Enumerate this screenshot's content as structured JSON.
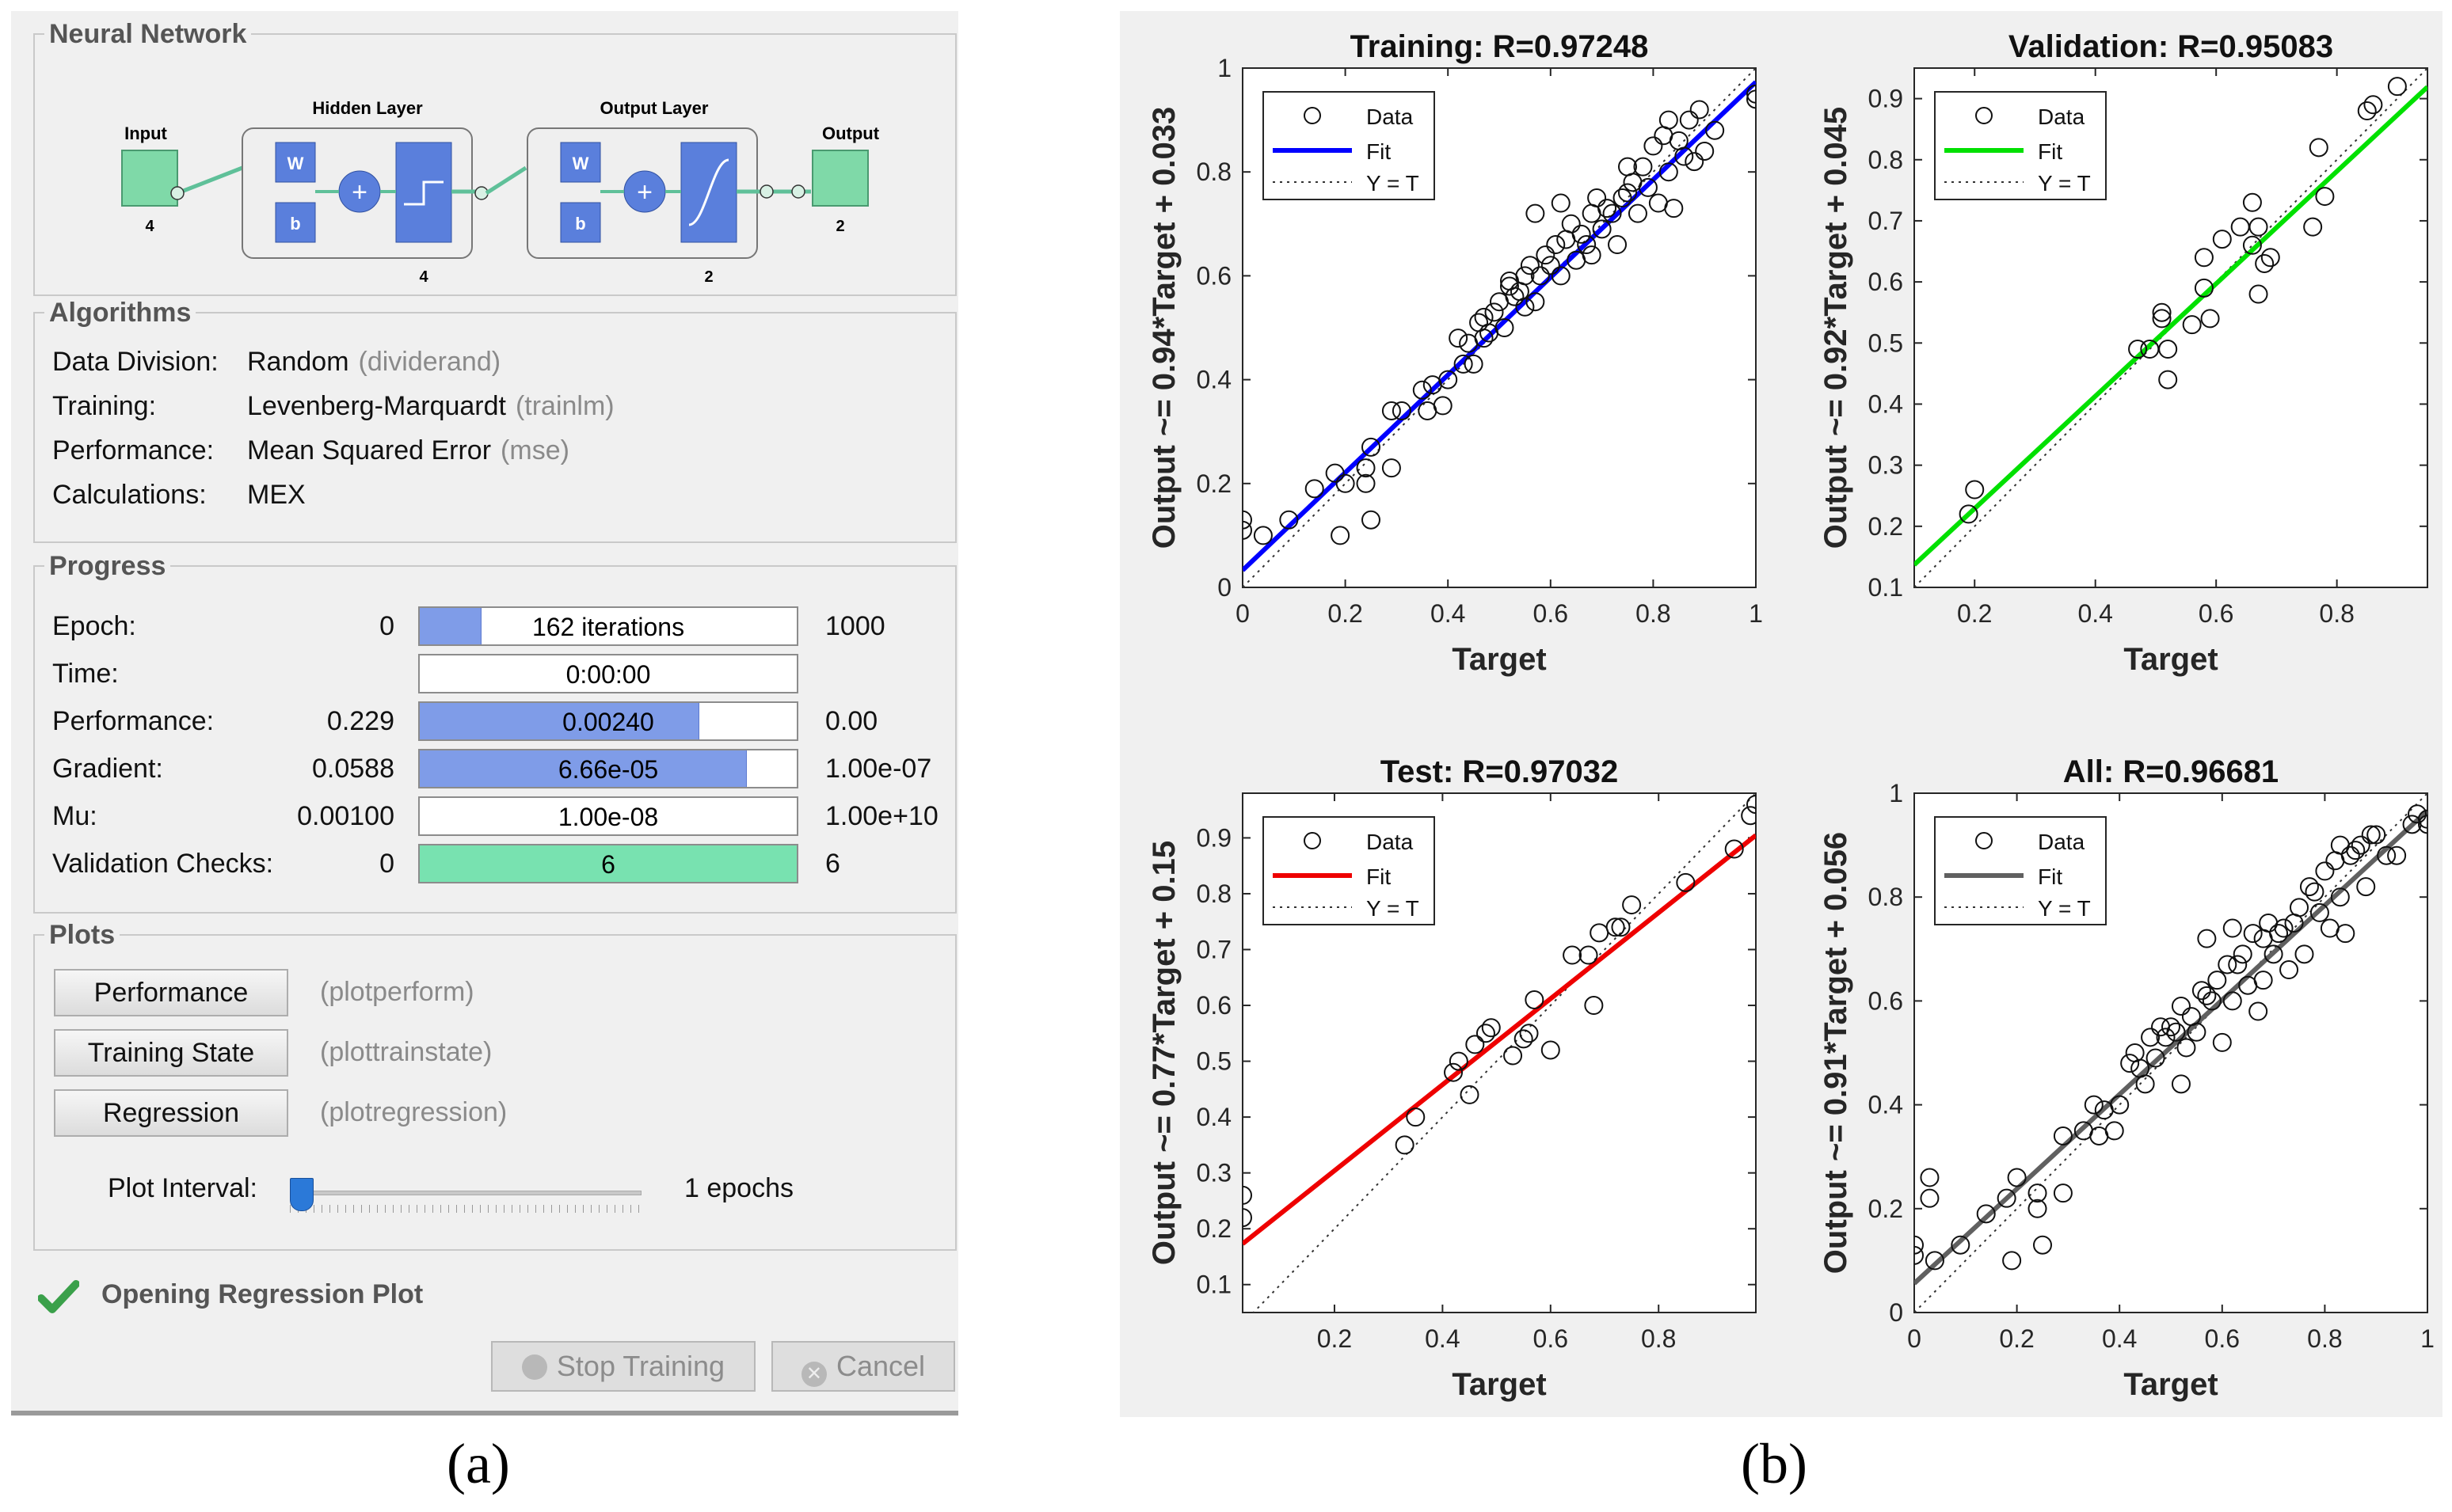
{
  "panel_a": {
    "neural_network": {
      "title": "Neural Network",
      "input_label": "Input",
      "input_size": "4",
      "hidden_label": "Hidden Layer",
      "hidden_size": "4",
      "output_layer_label": "Output Layer",
      "output_layer_size": "2",
      "output_label": "Output",
      "output_size": "2",
      "w_label": "W",
      "b_label": "b"
    },
    "algorithms": {
      "title": "Algorithms",
      "rows": [
        {
          "key": "Data Division:",
          "value": "Random",
          "fn": "(dividerand)"
        },
        {
          "key": "Training:",
          "value": "Levenberg-Marquardt",
          "fn": "(trainlm)"
        },
        {
          "key": "Performance:",
          "value": "Mean Squared Error",
          "fn": "(mse)"
        },
        {
          "key": "Calculations:",
          "value": "MEX",
          "fn": ""
        }
      ]
    },
    "progress": {
      "title": "Progress",
      "rows": [
        {
          "label": "Epoch:",
          "min": "0",
          "value": "162 iterations",
          "max": "1000",
          "fill": 0.162
        },
        {
          "label": "Time:",
          "min": "",
          "value": "0:00:00",
          "max": "",
          "fill": 0
        },
        {
          "label": "Performance:",
          "min": "0.229",
          "value": "0.00240",
          "max": "0.00",
          "fill": 0.74
        },
        {
          "label": "Gradient:",
          "min": "0.0588",
          "value": "6.66e-05",
          "max": "1.00e-07",
          "fill": 0.865
        },
        {
          "label": "Mu:",
          "min": "0.00100",
          "value": "1.00e-08",
          "max": "1.00e+10",
          "fill": 0
        },
        {
          "label": "Validation Checks:",
          "min": "0",
          "value": "6",
          "max": "6",
          "fill": 1.0
        }
      ]
    },
    "plots": {
      "title": "Plots",
      "buttons": [
        {
          "label": "Performance",
          "fn": "(plotperform)"
        },
        {
          "label": "Training State",
          "fn": "(plottrainstate)"
        },
        {
          "label": "Regression",
          "fn": "(plotregression)"
        }
      ],
      "interval_label": "Plot Interval:",
      "interval_value": "1 epochs",
      "interval_fraction": 0.0
    },
    "status_text": "Opening Regression Plot",
    "stop_button": "Stop Training",
    "cancel_button": "Cancel",
    "colors": {
      "progress_fill": "#7f9ce8",
      "validation_fill": "#78e2b0",
      "status_check": "#3aa04a"
    }
  },
  "captions": {
    "a": "(a)",
    "b": "(b)"
  },
  "chart_data": [
    {
      "type": "scatter",
      "title": "Training: R=0.97248",
      "xlabel": "Target",
      "ylabel": "Output ~= 0.94*Target + 0.033",
      "xlim": [
        0,
        1
      ],
      "ylim": [
        0,
        1
      ],
      "xticks": [
        0,
        0.2,
        0.4,
        0.6,
        0.8,
        1
      ],
      "xtick_labels": [
        "0",
        "0.2",
        "0.4",
        "0.6",
        "0.8",
        "1"
      ],
      "yticks": [
        0,
        0.2,
        0.4,
        0.6,
        0.8,
        1
      ],
      "ytick_labels": [
        "0",
        "0.2",
        "0.4",
        "0.6",
        "0.8",
        "1"
      ],
      "fit": {
        "slope": 0.94,
        "intercept": 0.033,
        "color": "#0000ff"
      },
      "legend": [
        "Data",
        "Fit",
        "Y = T"
      ],
      "points": [
        [
          0,
          0.13
        ],
        [
          0,
          0.11
        ],
        [
          0.04,
          0.1
        ],
        [
          0.09,
          0.13
        ],
        [
          0.14,
          0.19
        ],
        [
          0.18,
          0.22
        ],
        [
          0.19,
          0.1
        ],
        [
          0.2,
          0.2
        ],
        [
          0.24,
          0.23
        ],
        [
          0.24,
          0.2
        ],
        [
          0.25,
          0.27
        ],
        [
          0.25,
          0.13
        ],
        [
          0.29,
          0.23
        ],
        [
          0.29,
          0.34
        ],
        [
          0.31,
          0.34
        ],
        [
          0.35,
          0.38
        ],
        [
          0.36,
          0.34
        ],
        [
          0.37,
          0.39
        ],
        [
          0.39,
          0.35
        ],
        [
          0.4,
          0.4
        ],
        [
          0.42,
          0.48
        ],
        [
          0.43,
          0.43
        ],
        [
          0.44,
          0.47
        ],
        [
          0.45,
          0.43
        ],
        [
          0.46,
          0.51
        ],
        [
          0.47,
          0.52
        ],
        [
          0.48,
          0.49
        ],
        [
          0.49,
          0.53
        ],
        [
          0.5,
          0.55
        ],
        [
          0.51,
          0.5
        ],
        [
          0.52,
          0.58
        ],
        [
          0.53,
          0.56
        ],
        [
          0.54,
          0.57
        ],
        [
          0.55,
          0.6
        ],
        [
          0.55,
          0.54
        ],
        [
          0.56,
          0.62
        ],
        [
          0.57,
          0.55
        ],
        [
          0.58,
          0.6
        ],
        [
          0.59,
          0.64
        ],
        [
          0.6,
          0.62
        ],
        [
          0.61,
          0.66
        ],
        [
          0.62,
          0.6
        ],
        [
          0.63,
          0.67
        ],
        [
          0.64,
          0.7
        ],
        [
          0.65,
          0.63
        ],
        [
          0.66,
          0.68
        ],
        [
          0.67,
          0.66
        ],
        [
          0.68,
          0.72
        ],
        [
          0.69,
          0.75
        ],
        [
          0.7,
          0.69
        ],
        [
          0.71,
          0.73
        ],
        [
          0.72,
          0.72
        ],
        [
          0.73,
          0.66
        ],
        [
          0.74,
          0.75
        ],
        [
          0.75,
          0.76
        ],
        [
          0.76,
          0.78
        ],
        [
          0.77,
          0.72
        ],
        [
          0.78,
          0.81
        ],
        [
          0.79,
          0.77
        ],
        [
          0.8,
          0.85
        ],
        [
          0.81,
          0.74
        ],
        [
          0.82,
          0.87
        ],
        [
          0.83,
          0.8
        ],
        [
          0.84,
          0.73
        ],
        [
          0.85,
          0.86
        ],
        [
          0.86,
          0.83
        ],
        [
          0.87,
          0.9
        ],
        [
          0.88,
          0.82
        ],
        [
          0.89,
          0.92
        ],
        [
          0.9,
          0.84
        ],
        [
          0.92,
          0.88
        ],
        [
          1,
          0.95
        ],
        [
          1,
          0.94
        ],
        [
          0.57,
          0.72
        ],
        [
          0.52,
          0.59
        ],
        [
          0.47,
          0.48
        ],
        [
          0.68,
          0.64
        ],
        [
          0.75,
          0.81
        ],
        [
          0.83,
          0.9
        ],
        [
          0.62,
          0.74
        ]
      ]
    },
    {
      "type": "scatter",
      "title": "Validation: R=0.95083",
      "xlabel": "Target",
      "ylabel": "Output ~= 0.92*Target + 0.045",
      "xlim": [
        0.1,
        0.95
      ],
      "ylim": [
        0.1,
        0.95
      ],
      "xticks": [
        0.2,
        0.4,
        0.6,
        0.8
      ],
      "xtick_labels": [
        "0.2",
        "0.4",
        "0.6",
        "0.8"
      ],
      "yticks": [
        0.1,
        0.2,
        0.3,
        0.4,
        0.5,
        0.6,
        0.7,
        0.8,
        0.9
      ],
      "ytick_labels": [
        "0.1",
        "0.2",
        "0.3",
        "0.4",
        "0.5",
        "0.6",
        "0.7",
        "0.8",
        "0.9"
      ],
      "fit": {
        "slope": 0.92,
        "intercept": 0.045,
        "color": "#00e000"
      },
      "legend": [
        "Data",
        "Fit",
        "Y = T"
      ],
      "points": [
        [
          0.19,
          0.22
        ],
        [
          0.2,
          0.26
        ],
        [
          0.47,
          0.49
        ],
        [
          0.49,
          0.49
        ],
        [
          0.51,
          0.55
        ],
        [
          0.51,
          0.54
        ],
        [
          0.52,
          0.44
        ],
        [
          0.52,
          0.49
        ],
        [
          0.56,
          0.53
        ],
        [
          0.58,
          0.59
        ],
        [
          0.58,
          0.64
        ],
        [
          0.59,
          0.54
        ],
        [
          0.61,
          0.67
        ],
        [
          0.64,
          0.69
        ],
        [
          0.66,
          0.66
        ],
        [
          0.66,
          0.73
        ],
        [
          0.67,
          0.58
        ],
        [
          0.67,
          0.69
        ],
        [
          0.68,
          0.63
        ],
        [
          0.69,
          0.64
        ],
        [
          0.76,
          0.69
        ],
        [
          0.77,
          0.82
        ],
        [
          0.78,
          0.74
        ],
        [
          0.85,
          0.88
        ],
        [
          0.86,
          0.89
        ],
        [
          0.9,
          0.92
        ]
      ]
    },
    {
      "type": "scatter",
      "title": "Test: R=0.97032",
      "xlabel": "Target",
      "ylabel": "Output ~= 0.77*Target + 0.15",
      "xlim": [
        0.03,
        0.98
      ],
      "ylim": [
        0.05,
        0.98
      ],
      "xticks": [
        0.2,
        0.4,
        0.6,
        0.8
      ],
      "xtick_labels": [
        "0.2",
        "0.4",
        "0.6",
        "0.8"
      ],
      "yticks": [
        0.1,
        0.2,
        0.3,
        0.4,
        0.5,
        0.6,
        0.7,
        0.8,
        0.9
      ],
      "ytick_labels": [
        "0.1",
        "0.2",
        "0.3",
        "0.4",
        "0.5",
        "0.6",
        "0.7",
        "0.8",
        "0.9"
      ],
      "fit": {
        "slope": 0.77,
        "intercept": 0.15,
        "color": "#ee0000"
      },
      "legend": [
        "Data",
        "Fit",
        "Y = T"
      ],
      "points": [
        [
          0.03,
          0.22
        ],
        [
          0.03,
          0.26
        ],
        [
          0.33,
          0.35
        ],
        [
          0.35,
          0.4
        ],
        [
          0.42,
          0.48
        ],
        [
          0.43,
          0.5
        ],
        [
          0.45,
          0.44
        ],
        [
          0.46,
          0.53
        ],
        [
          0.48,
          0.55
        ],
        [
          0.49,
          0.56
        ],
        [
          0.53,
          0.51
        ],
        [
          0.55,
          0.54
        ],
        [
          0.56,
          0.55
        ],
        [
          0.57,
          0.61
        ],
        [
          0.6,
          0.52
        ],
        [
          0.64,
          0.69
        ],
        [
          0.67,
          0.69
        ],
        [
          0.68,
          0.6
        ],
        [
          0.69,
          0.73
        ],
        [
          0.72,
          0.74
        ],
        [
          0.73,
          0.74
        ],
        [
          0.75,
          0.78
        ],
        [
          0.85,
          0.82
        ],
        [
          0.94,
          0.88
        ],
        [
          0.97,
          0.94
        ],
        [
          0.98,
          0.96
        ]
      ]
    },
    {
      "type": "scatter",
      "title": "All: R=0.96681",
      "xlabel": "Target",
      "ylabel": "Output ~= 0.91*Target + 0.056",
      "xlim": [
        0,
        1
      ],
      "ylim": [
        0,
        1
      ],
      "xticks": [
        0,
        0.2,
        0.4,
        0.6,
        0.8,
        1
      ],
      "xtick_labels": [
        "0",
        "0.2",
        "0.4",
        "0.6",
        "0.8",
        "1"
      ],
      "yticks": [
        0,
        0.2,
        0.4,
        0.6,
        0.8,
        1
      ],
      "ytick_labels": [
        "0",
        "0.2",
        "0.4",
        "0.6",
        "0.8",
        "1"
      ],
      "fit": {
        "slope": 0.91,
        "intercept": 0.056,
        "color": "#606060"
      },
      "legend": [
        "Data",
        "Fit",
        "Y = T"
      ],
      "points": [
        [
          0,
          0.13
        ],
        [
          0,
          0.11
        ],
        [
          0.03,
          0.22
        ],
        [
          0.03,
          0.26
        ],
        [
          0.04,
          0.1
        ],
        [
          0.09,
          0.13
        ],
        [
          0.14,
          0.19
        ],
        [
          0.18,
          0.22
        ],
        [
          0.19,
          0.1
        ],
        [
          0.2,
          0.26
        ],
        [
          0.24,
          0.23
        ],
        [
          0.24,
          0.2
        ],
        [
          0.25,
          0.13
        ],
        [
          0.29,
          0.23
        ],
        [
          0.29,
          0.34
        ],
        [
          0.33,
          0.35
        ],
        [
          0.35,
          0.4
        ],
        [
          0.36,
          0.34
        ],
        [
          0.37,
          0.39
        ],
        [
          0.39,
          0.35
        ],
        [
          0.4,
          0.4
        ],
        [
          0.42,
          0.48
        ],
        [
          0.43,
          0.5
        ],
        [
          0.44,
          0.47
        ],
        [
          0.45,
          0.44
        ],
        [
          0.46,
          0.53
        ],
        [
          0.47,
          0.49
        ],
        [
          0.48,
          0.55
        ],
        [
          0.49,
          0.53
        ],
        [
          0.5,
          0.55
        ],
        [
          0.51,
          0.54
        ],
        [
          0.52,
          0.44
        ],
        [
          0.53,
          0.51
        ],
        [
          0.54,
          0.57
        ],
        [
          0.55,
          0.54
        ],
        [
          0.56,
          0.62
        ],
        [
          0.57,
          0.61
        ],
        [
          0.58,
          0.6
        ],
        [
          0.59,
          0.64
        ],
        [
          0.6,
          0.52
        ],
        [
          0.61,
          0.67
        ],
        [
          0.62,
          0.6
        ],
        [
          0.63,
          0.67
        ],
        [
          0.64,
          0.69
        ],
        [
          0.65,
          0.63
        ],
        [
          0.66,
          0.73
        ],
        [
          0.67,
          0.58
        ],
        [
          0.68,
          0.72
        ],
        [
          0.69,
          0.75
        ],
        [
          0.7,
          0.69
        ],
        [
          0.71,
          0.73
        ],
        [
          0.72,
          0.74
        ],
        [
          0.73,
          0.66
        ],
        [
          0.74,
          0.75
        ],
        [
          0.75,
          0.78
        ],
        [
          0.76,
          0.69
        ],
        [
          0.77,
          0.82
        ],
        [
          0.78,
          0.81
        ],
        [
          0.79,
          0.77
        ],
        [
          0.8,
          0.85
        ],
        [
          0.81,
          0.74
        ],
        [
          0.82,
          0.87
        ],
        [
          0.83,
          0.8
        ],
        [
          0.84,
          0.73
        ],
        [
          0.85,
          0.88
        ],
        [
          0.86,
          0.89
        ],
        [
          0.87,
          0.9
        ],
        [
          0.88,
          0.82
        ],
        [
          0.89,
          0.92
        ],
        [
          0.9,
          0.92
        ],
        [
          0.92,
          0.88
        ],
        [
          0.94,
          0.88
        ],
        [
          0.97,
          0.94
        ],
        [
          0.98,
          0.96
        ],
        [
          1,
          0.95
        ],
        [
          1,
          0.94
        ],
        [
          0.57,
          0.72
        ],
        [
          0.52,
          0.59
        ],
        [
          0.68,
          0.64
        ],
        [
          0.62,
          0.74
        ],
        [
          0.83,
          0.9
        ]
      ]
    }
  ]
}
